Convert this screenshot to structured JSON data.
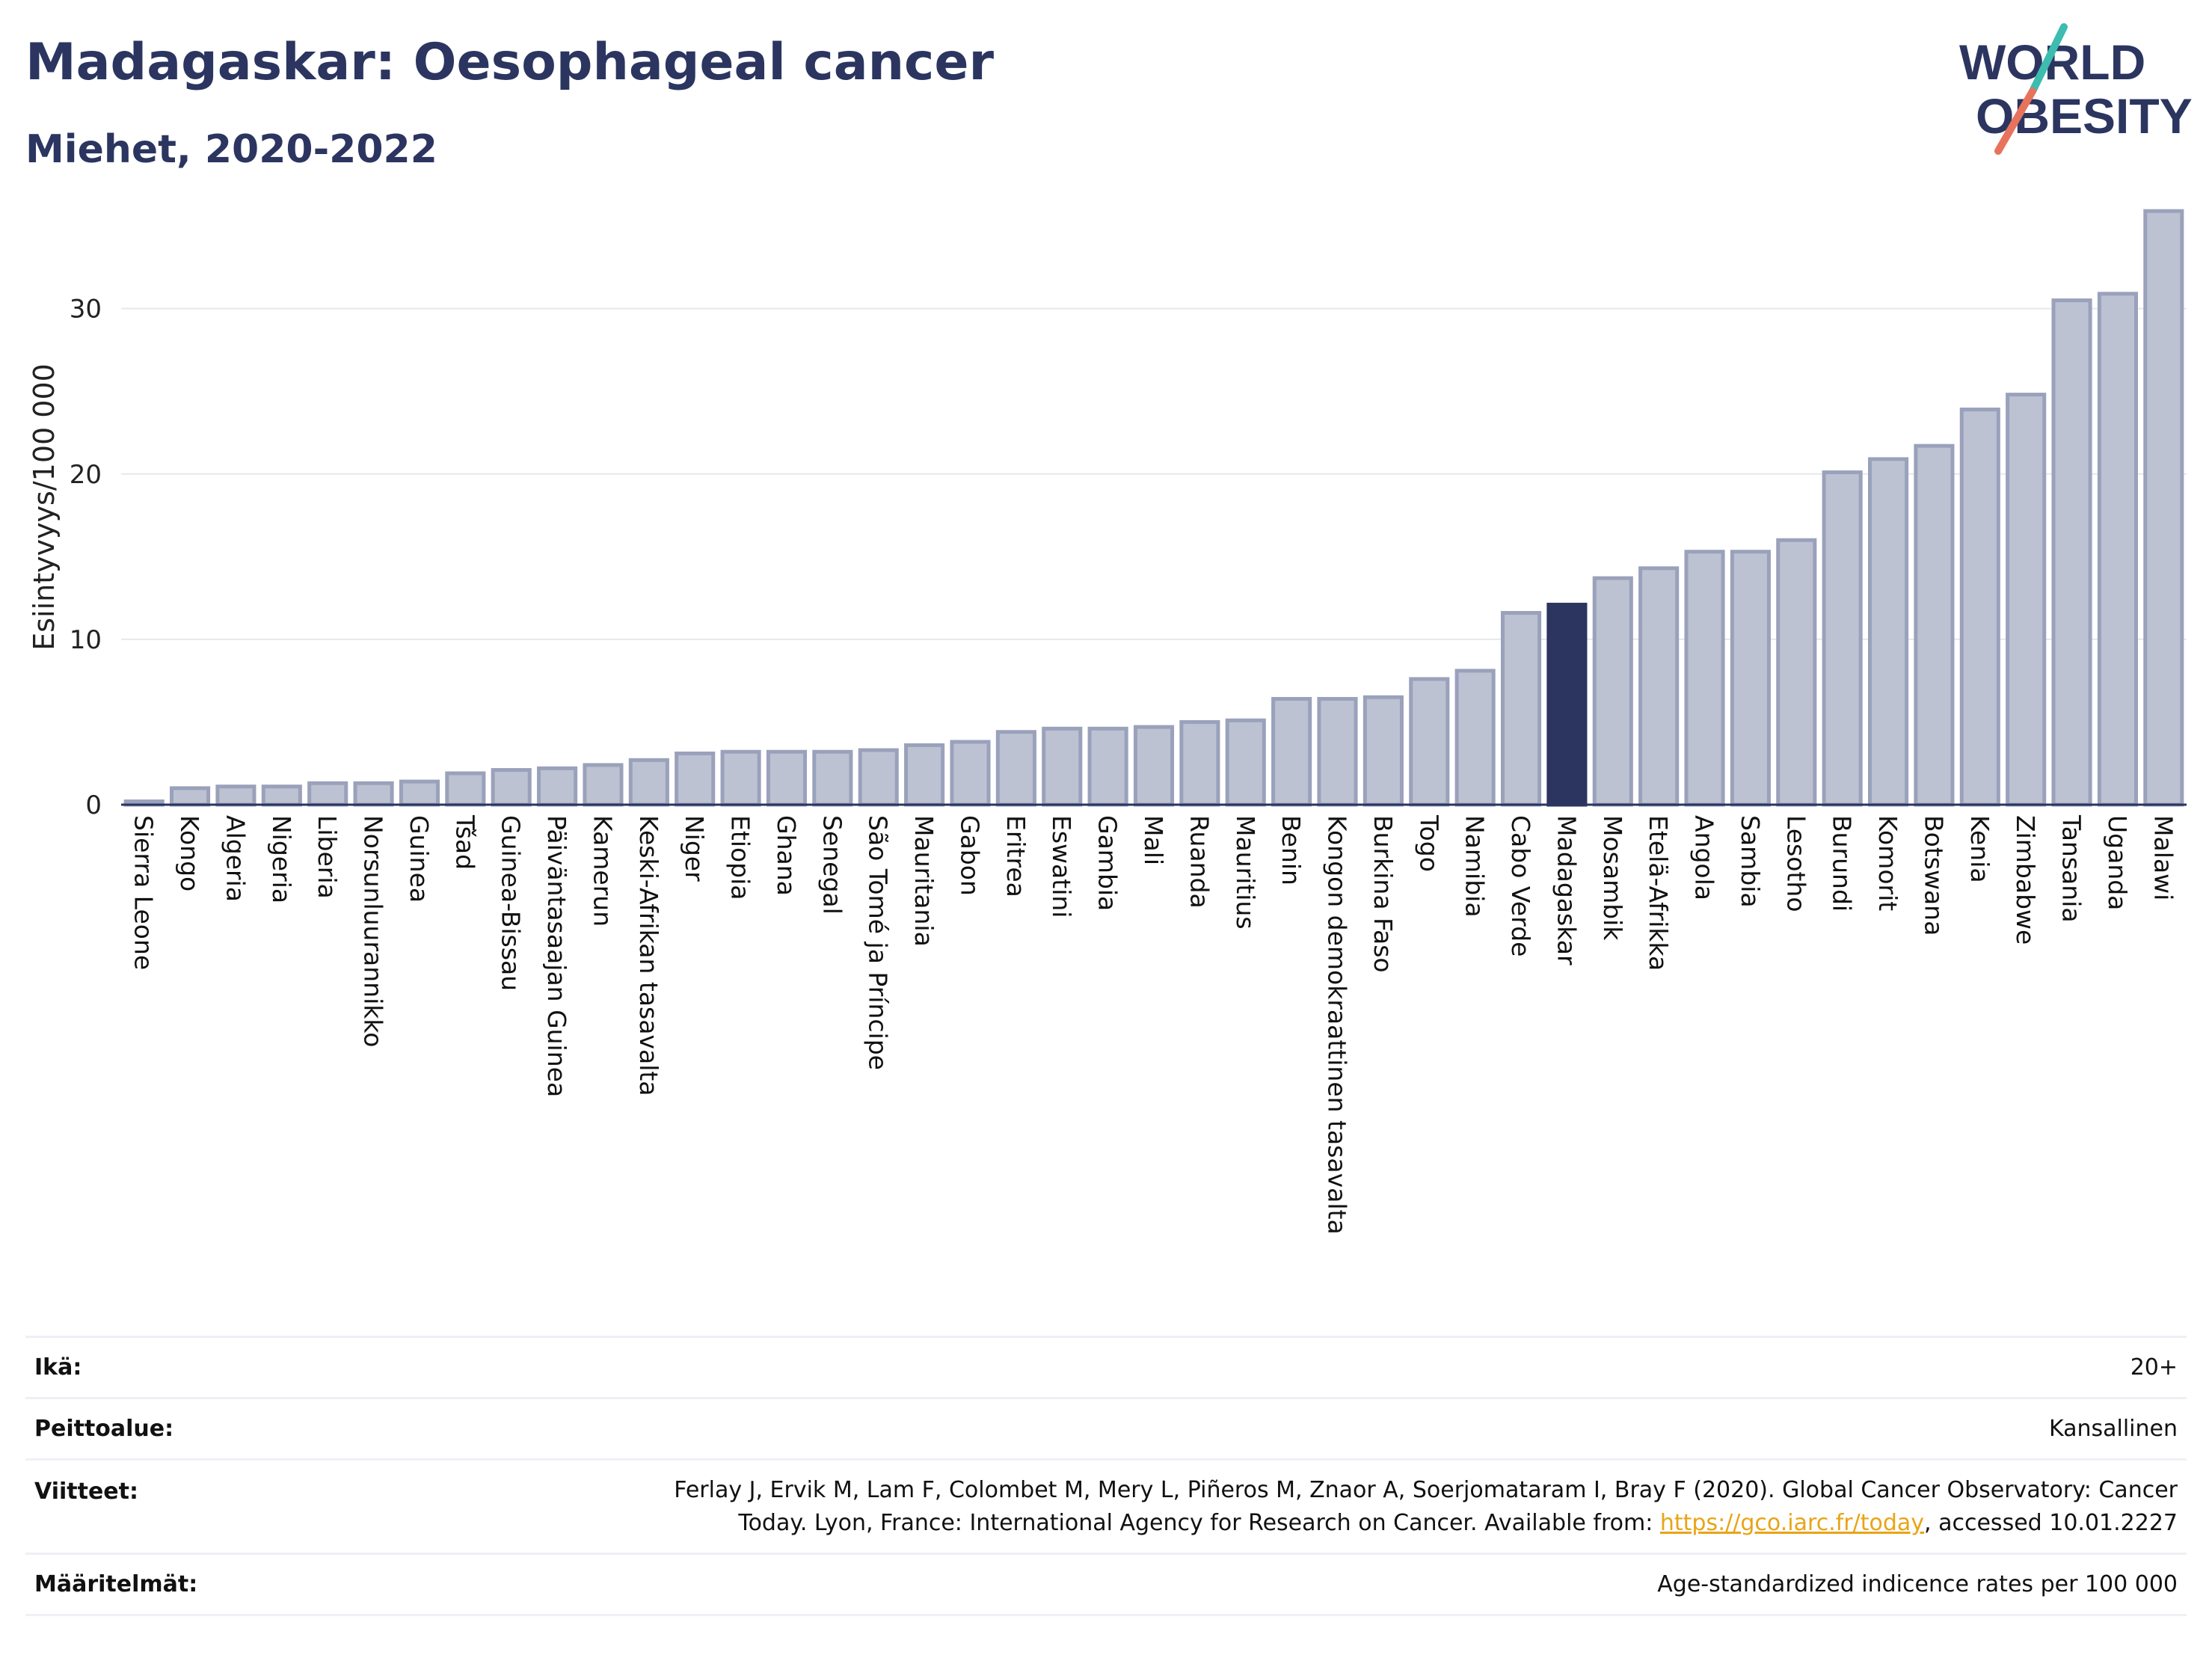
{
  "title": "Madagaskar: Oesophageal cancer",
  "subtitle": "Miehet, 2020-2022",
  "logo": {
    "line1": "WORLD",
    "line2": "OBESITY"
  },
  "colors": {
    "bar": "#bcc2d2",
    "bar_border": "#9aa1bb",
    "highlight": "#2b3560",
    "text": "#2b3560",
    "grid": "#e6e8ee",
    "link": "#e8a417",
    "logo_teal": "#3dbcb0",
    "logo_red": "#e8735d"
  },
  "chart_data": {
    "type": "bar",
    "ylabel": "Esiintyvyys/100 000",
    "ylim": [
      0,
      36
    ],
    "yticks": [
      0,
      10,
      20,
      30
    ],
    "grid": true,
    "highlight": "Madagaskar",
    "categories": [
      "Sierra Leone",
      "Kongo",
      "Algeria",
      "Nigeria",
      "Liberia",
      "Norsunluurannikko",
      "Guinea",
      "Tšad",
      "Guinea-Bissau",
      "Päiväntasaajan Guinea",
      "Kamerun",
      "Keski-Afrikan tasavalta",
      "Niger",
      "Etiopia",
      "Ghana",
      "Senegal",
      "São Tomé ja Príncipe",
      "Mauritania",
      "Gabon",
      "Eritrea",
      "Eswatini",
      "Gambia",
      "Mali",
      "Ruanda",
      "Mauritius",
      "Benin",
      "Kongon demokraattinen tasavalta",
      "Burkina Faso",
      "Togo",
      "Namibia",
      "Cabo Verde",
      "Madagaskar",
      "Mosambik",
      "Etelä-Afrikka",
      "Angola",
      "Sambia",
      "Lesotho",
      "Burundi",
      "Komorit",
      "Botswana",
      "Kenia",
      "Zimbabwe",
      "Tansania",
      "Uganda",
      "Malawi"
    ],
    "values": [
      0.2,
      1.0,
      1.1,
      1.1,
      1.3,
      1.3,
      1.4,
      1.9,
      2.1,
      2.2,
      2.4,
      2.7,
      3.1,
      3.2,
      3.2,
      3.2,
      3.3,
      3.6,
      3.8,
      4.4,
      4.6,
      4.6,
      4.7,
      5.0,
      5.1,
      6.4,
      6.4,
      6.5,
      7.6,
      8.1,
      11.6,
      12.1,
      13.7,
      14.3,
      15.3,
      15.3,
      16.0,
      20.1,
      20.9,
      21.7,
      23.9,
      24.8,
      30.5,
      30.9,
      35.9
    ]
  },
  "info": [
    {
      "key": "Ikä:",
      "value": "20+"
    },
    {
      "key": "Peittoalue:",
      "value": "Kansallinen"
    },
    {
      "key": "Viitteet:",
      "value_line1": "Ferlay J, Ervik M, Lam F, Colombet M, Mery L, Piñeros M, Znaor A, Soerjomataram I, Bray F (2020). Global Cancer Observatory: Cancer",
      "value_pre": "Today. Lyon, France: International Agency for Research on Cancer. Available from: ",
      "link": "https://gco.iarc.fr/today",
      "value_post": ", accessed 10.01.2227"
    },
    {
      "key": "Määritelmät:",
      "value": "Age-standardized indicence rates per 100 000"
    }
  ]
}
